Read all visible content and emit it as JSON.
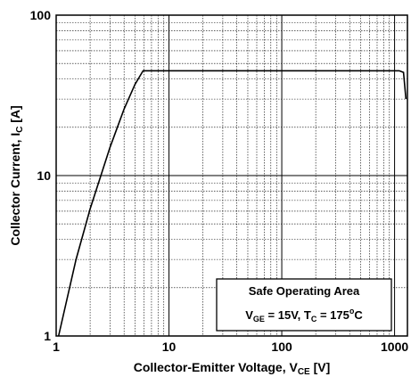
{
  "chart_data": {
    "type": "line",
    "title": "",
    "xscale": "log",
    "yscale": "log",
    "xlim": [
      1,
      1300
    ],
    "ylim": [
      1,
      100
    ],
    "grid": true,
    "x_ticks": [
      "1",
      "10",
      "100",
      "1000"
    ],
    "y_ticks": [
      "1",
      "10",
      "100"
    ],
    "xlabel": {
      "main": "Collector-Emitter Voltage, V",
      "sub": "CE",
      "unit": " [V]"
    },
    "ylabel": {
      "main": "Collector Current, I",
      "sub": "C",
      "unit": " [A]"
    },
    "series": [
      {
        "x": [
          1.05,
          1.5,
          2,
          3,
          4,
          5,
          5.9,
          1100,
          1200,
          1260
        ],
        "y": [
          1.0,
          3.0,
          6.2,
          15.0,
          26.0,
          37.0,
          45.0,
          45.0,
          44.0,
          30.0
        ]
      }
    ],
    "annotation": {
      "line1": "Safe Operating Area",
      "line2": {
        "v": "V",
        "vsub": "GE",
        "mid": " = 15V, T",
        "tsub": "C",
        "eq": " = 175",
        "sup": "o",
        "end": "C"
      }
    }
  }
}
